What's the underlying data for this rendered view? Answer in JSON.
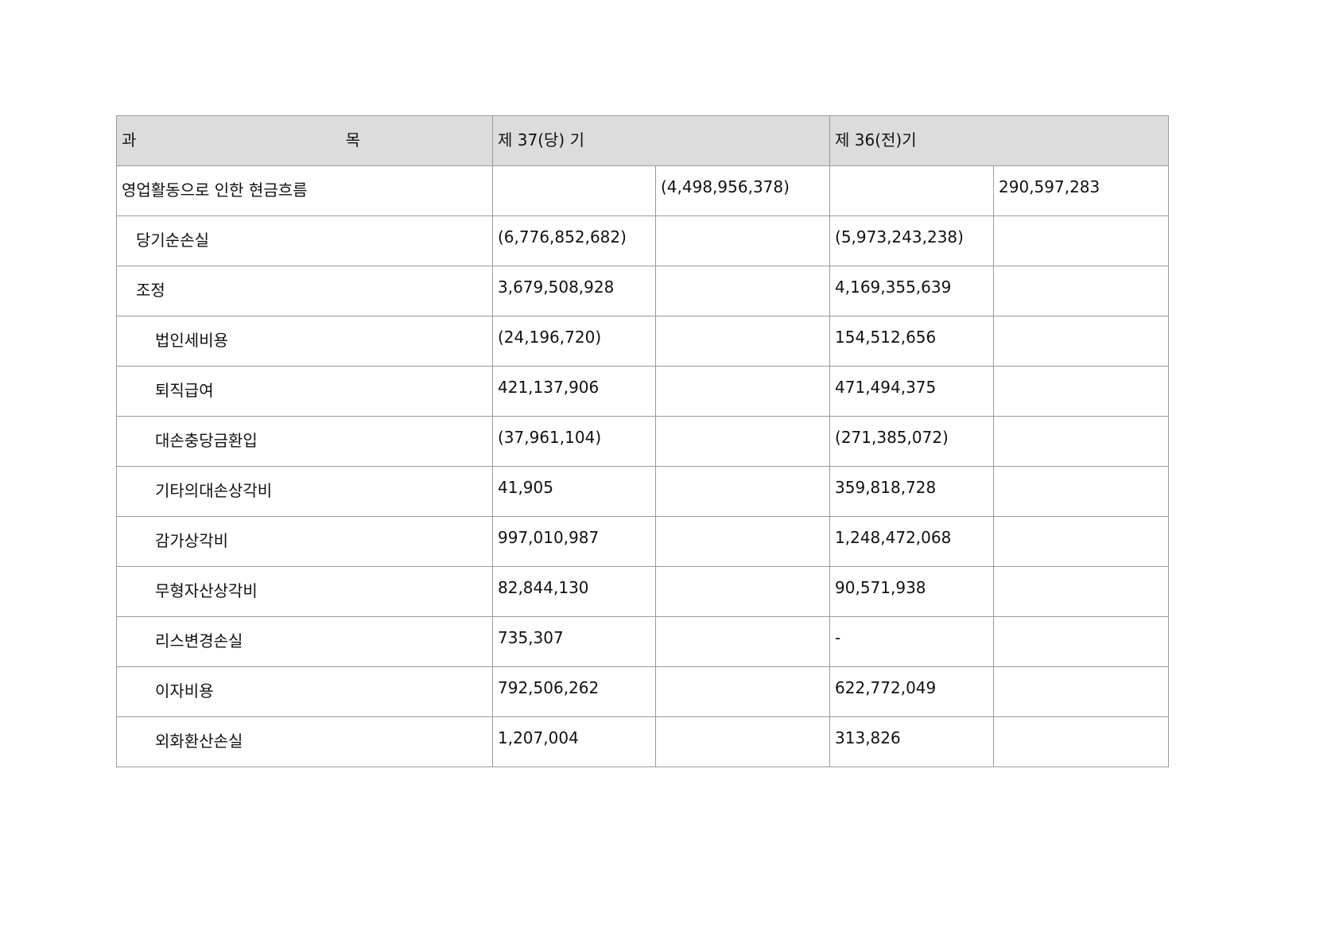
{
  "header": {
    "subject_left": "과",
    "subject_right": "목",
    "current": "제 37(당) 기",
    "prior": "제 36(전)기"
  },
  "rows": [
    {
      "label": "영업활동으로 인한 현금흐름",
      "level": 0,
      "cur_detail": "",
      "cur_total": "(4,498,956,378)",
      "prior_detail": "",
      "prior_total": "290,597,283"
    },
    {
      "label": "당기순손실",
      "level": 1,
      "cur_detail": "(6,776,852,682)",
      "cur_total": "",
      "prior_detail": "(5,973,243,238)",
      "prior_total": ""
    },
    {
      "label": "조정",
      "level": 1,
      "cur_detail": "3,679,508,928",
      "cur_total": "",
      "prior_detail": "4,169,355,639",
      "prior_total": ""
    },
    {
      "label": "법인세비용",
      "level": 2,
      "cur_detail": "(24,196,720)",
      "cur_total": "",
      "prior_detail": "154,512,656",
      "prior_total": ""
    },
    {
      "label": "퇴직급여",
      "level": 2,
      "cur_detail": "421,137,906",
      "cur_total": "",
      "prior_detail": "471,494,375",
      "prior_total": ""
    },
    {
      "label": "대손충당금환입",
      "level": 2,
      "cur_detail": "(37,961,104)",
      "cur_total": "",
      "prior_detail": "(271,385,072)",
      "prior_total": ""
    },
    {
      "label": "기타의대손상각비",
      "level": 2,
      "cur_detail": "41,905",
      "cur_total": "",
      "prior_detail": "359,818,728",
      "prior_total": ""
    },
    {
      "label": "감가상각비",
      "level": 2,
      "cur_detail": "997,010,987",
      "cur_total": "",
      "prior_detail": "1,248,472,068",
      "prior_total": ""
    },
    {
      "label": "무형자산상각비",
      "level": 2,
      "cur_detail": "82,844,130",
      "cur_total": "",
      "prior_detail": "90,571,938",
      "prior_total": ""
    },
    {
      "label": "리스변경손실",
      "level": 2,
      "cur_detail": "735,307",
      "cur_total": "",
      "prior_detail": "-",
      "prior_total": ""
    },
    {
      "label": "이자비용",
      "level": 2,
      "cur_detail": "792,506,262",
      "cur_total": "",
      "prior_detail": "622,772,049",
      "prior_total": ""
    },
    {
      "label": "외화환산손실",
      "level": 2,
      "cur_detail": "1,207,004",
      "cur_total": "",
      "prior_detail": "313,826",
      "prior_total": ""
    }
  ]
}
